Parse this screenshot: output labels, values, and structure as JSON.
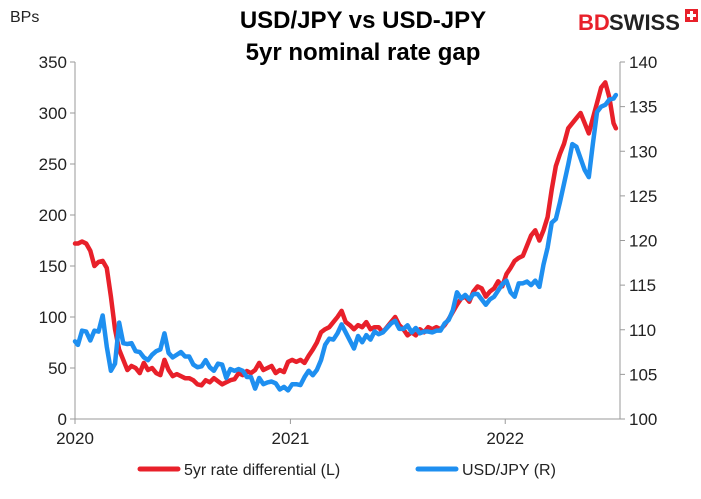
{
  "chart_data": {
    "type": "line",
    "title_line1": "USD/JPY vs USD-JPY",
    "title_line2": "5yr nominal rate gap",
    "ylabel_left": "BPs",
    "ylim_left": [
      0,
      350
    ],
    "yticks_left": [
      "0",
      "50",
      "100",
      "150",
      "200",
      "250",
      "300",
      "350"
    ],
    "ylim_right": [
      100,
      140
    ],
    "yticks_right": [
      "100",
      "105",
      "110",
      "115",
      "120",
      "125",
      "130",
      "135",
      "140"
    ],
    "xlim": [
      "2020-01-01",
      "2022-07-15"
    ],
    "xticks": [
      "2020",
      "2021",
      "2022"
    ],
    "grid": false,
    "legend_position": "bottom",
    "series": [
      {
        "name": "5yr rate differential (L)",
        "axis": "left",
        "color": "#e8202a",
        "points": [
          [
            "2020-01-01",
            172
          ],
          [
            "2020-01-06",
            172
          ],
          [
            "2020-01-13",
            174
          ],
          [
            "2020-01-20",
            172
          ],
          [
            "2020-01-27",
            165
          ],
          [
            "2020-02-03",
            150
          ],
          [
            "2020-02-10",
            154
          ],
          [
            "2020-02-17",
            155
          ],
          [
            "2020-02-24",
            148
          ],
          [
            "2020-03-02",
            120
          ],
          [
            "2020-03-09",
            88
          ],
          [
            "2020-03-16",
            68
          ],
          [
            "2020-03-23",
            58
          ],
          [
            "2020-03-30",
            48
          ],
          [
            "2020-04-06",
            52
          ],
          [
            "2020-04-13",
            50
          ],
          [
            "2020-04-20",
            45
          ],
          [
            "2020-04-27",
            55
          ],
          [
            "2020-05-04",
            48
          ],
          [
            "2020-05-11",
            50
          ],
          [
            "2020-05-18",
            45
          ],
          [
            "2020-05-25",
            43
          ],
          [
            "2020-06-01",
            58
          ],
          [
            "2020-06-08",
            48
          ],
          [
            "2020-06-15",
            42
          ],
          [
            "2020-06-22",
            44
          ],
          [
            "2020-06-29",
            42
          ],
          [
            "2020-07-06",
            40
          ],
          [
            "2020-07-13",
            40
          ],
          [
            "2020-07-20",
            38
          ],
          [
            "2020-07-27",
            34
          ],
          [
            "2020-08-03",
            33
          ],
          [
            "2020-08-10",
            38
          ],
          [
            "2020-08-17",
            36
          ],
          [
            "2020-08-24",
            40
          ],
          [
            "2020-08-31",
            37
          ],
          [
            "2020-09-07",
            34
          ],
          [
            "2020-09-14",
            36
          ],
          [
            "2020-09-21",
            38
          ],
          [
            "2020-09-28",
            39
          ],
          [
            "2020-10-05",
            45
          ],
          [
            "2020-10-12",
            43
          ],
          [
            "2020-10-19",
            47
          ],
          [
            "2020-10-26",
            45
          ],
          [
            "2020-11-02",
            48
          ],
          [
            "2020-11-09",
            55
          ],
          [
            "2020-11-16",
            48
          ],
          [
            "2020-11-23",
            50
          ],
          [
            "2020-11-30",
            52
          ],
          [
            "2020-12-07",
            45
          ],
          [
            "2020-12-14",
            48
          ],
          [
            "2020-12-21",
            46
          ],
          [
            "2020-12-28",
            56
          ],
          [
            "2021-01-04",
            58
          ],
          [
            "2021-01-11",
            56
          ],
          [
            "2021-01-18",
            58
          ],
          [
            "2021-01-25",
            55
          ],
          [
            "2021-02-01",
            62
          ],
          [
            "2021-02-08",
            68
          ],
          [
            "2021-02-15",
            75
          ],
          [
            "2021-02-22",
            85
          ],
          [
            "2021-03-01",
            88
          ],
          [
            "2021-03-08",
            90
          ],
          [
            "2021-03-15",
            95
          ],
          [
            "2021-03-22",
            100
          ],
          [
            "2021-03-29",
            106
          ],
          [
            "2021-04-05",
            95
          ],
          [
            "2021-04-12",
            92
          ],
          [
            "2021-04-19",
            88
          ],
          [
            "2021-04-26",
            92
          ],
          [
            "2021-05-03",
            90
          ],
          [
            "2021-05-10",
            95
          ],
          [
            "2021-05-17",
            88
          ],
          [
            "2021-05-24",
            90
          ],
          [
            "2021-05-31",
            90
          ],
          [
            "2021-06-07",
            85
          ],
          [
            "2021-06-14",
            90
          ],
          [
            "2021-06-21",
            95
          ],
          [
            "2021-06-28",
            100
          ],
          [
            "2021-07-05",
            92
          ],
          [
            "2021-07-12",
            88
          ],
          [
            "2021-07-19",
            82
          ],
          [
            "2021-07-26",
            85
          ],
          [
            "2021-08-02",
            82
          ],
          [
            "2021-08-09",
            88
          ],
          [
            "2021-08-16",
            85
          ],
          [
            "2021-08-23",
            90
          ],
          [
            "2021-08-30",
            88
          ],
          [
            "2021-09-06",
            90
          ],
          [
            "2021-09-13",
            88
          ],
          [
            "2021-09-20",
            92
          ],
          [
            "2021-09-27",
            98
          ],
          [
            "2021-10-04",
            105
          ],
          [
            "2021-10-11",
            112
          ],
          [
            "2021-10-18",
            118
          ],
          [
            "2021-10-25",
            120
          ],
          [
            "2021-11-01",
            115
          ],
          [
            "2021-11-08",
            125
          ],
          [
            "2021-11-15",
            130
          ],
          [
            "2021-11-22",
            128
          ],
          [
            "2021-11-29",
            120
          ],
          [
            "2021-12-06",
            125
          ],
          [
            "2021-12-13",
            128
          ],
          [
            "2021-12-20",
            135
          ],
          [
            "2021-12-27",
            130
          ],
          [
            "2022-01-03",
            142
          ],
          [
            "2022-01-10",
            148
          ],
          [
            "2022-01-17",
            155
          ],
          [
            "2022-01-24",
            158
          ],
          [
            "2022-01-31",
            160
          ],
          [
            "2022-02-07",
            170
          ],
          [
            "2022-02-14",
            180
          ],
          [
            "2022-02-21",
            185
          ],
          [
            "2022-02-28",
            175
          ],
          [
            "2022-03-07",
            185
          ],
          [
            "2022-03-14",
            198
          ],
          [
            "2022-03-21",
            225
          ],
          [
            "2022-03-28",
            248
          ],
          [
            "2022-04-04",
            260
          ],
          [
            "2022-04-11",
            270
          ],
          [
            "2022-04-18",
            285
          ],
          [
            "2022-04-25",
            290
          ],
          [
            "2022-05-02",
            295
          ],
          [
            "2022-05-09",
            300
          ],
          [
            "2022-05-16",
            290
          ],
          [
            "2022-05-23",
            280
          ],
          [
            "2022-05-30",
            295
          ],
          [
            "2022-06-06",
            310
          ],
          [
            "2022-06-13",
            325
          ],
          [
            "2022-06-20",
            330
          ],
          [
            "2022-06-27",
            315
          ],
          [
            "2022-07-04",
            290
          ],
          [
            "2022-07-08",
            285
          ]
        ]
      },
      {
        "name": "USD/JPY (R)",
        "axis": "right",
        "color": "#1e8ff0",
        "points": [
          [
            "2020-01-01",
            108.7
          ],
          [
            "2020-01-06",
            108.3
          ],
          [
            "2020-01-13",
            109.9
          ],
          [
            "2020-01-20",
            109.8
          ],
          [
            "2020-01-27",
            108.8
          ],
          [
            "2020-02-03",
            109.9
          ],
          [
            "2020-02-10",
            109.8
          ],
          [
            "2020-02-17",
            111.6
          ],
          [
            "2020-02-24",
            108.1
          ],
          [
            "2020-03-02",
            105.4
          ],
          [
            "2020-03-09",
            106.2
          ],
          [
            "2020-03-16",
            110.8
          ],
          [
            "2020-03-23",
            108.5
          ],
          [
            "2020-03-30",
            108.4
          ],
          [
            "2020-04-06",
            108.5
          ],
          [
            "2020-04-13",
            107.6
          ],
          [
            "2020-04-20",
            107.5
          ],
          [
            "2020-04-27",
            106.9
          ],
          [
            "2020-05-04",
            106.6
          ],
          [
            "2020-05-11",
            107.2
          ],
          [
            "2020-05-18",
            107.6
          ],
          [
            "2020-05-25",
            107.8
          ],
          [
            "2020-06-01",
            109.6
          ],
          [
            "2020-06-08",
            107.4
          ],
          [
            "2020-06-15",
            106.9
          ],
          [
            "2020-06-22",
            107.2
          ],
          [
            "2020-06-29",
            107.5
          ],
          [
            "2020-07-06",
            107.0
          ],
          [
            "2020-07-13",
            107.0
          ],
          [
            "2020-07-20",
            106.1
          ],
          [
            "2020-07-27",
            105.8
          ],
          [
            "2020-08-03",
            105.9
          ],
          [
            "2020-08-10",
            106.6
          ],
          [
            "2020-08-17",
            105.8
          ],
          [
            "2020-08-24",
            105.4
          ],
          [
            "2020-08-31",
            106.2
          ],
          [
            "2020-09-07",
            106.1
          ],
          [
            "2020-09-14",
            104.6
          ],
          [
            "2020-09-21",
            105.6
          ],
          [
            "2020-09-28",
            105.4
          ],
          [
            "2020-10-05",
            105.6
          ],
          [
            "2020-10-12",
            105.4
          ],
          [
            "2020-10-19",
            104.7
          ],
          [
            "2020-10-26",
            104.7
          ],
          [
            "2020-11-02",
            103.4
          ],
          [
            "2020-11-09",
            104.6
          ],
          [
            "2020-11-16",
            103.9
          ],
          [
            "2020-11-23",
            104.1
          ],
          [
            "2020-11-30",
            104.2
          ],
          [
            "2020-12-07",
            104.0
          ],
          [
            "2020-12-14",
            103.3
          ],
          [
            "2020-12-21",
            103.6
          ],
          [
            "2020-12-28",
            103.2
          ],
          [
            "2021-01-04",
            103.9
          ],
          [
            "2021-01-11",
            103.9
          ],
          [
            "2021-01-18",
            103.8
          ],
          [
            "2021-01-25",
            104.7
          ],
          [
            "2021-02-01",
            105.4
          ],
          [
            "2021-02-08",
            104.9
          ],
          [
            "2021-02-15",
            105.5
          ],
          [
            "2021-02-22",
            106.6
          ],
          [
            "2021-03-01",
            108.3
          ],
          [
            "2021-03-08",
            109.0
          ],
          [
            "2021-03-15",
            108.9
          ],
          [
            "2021-03-22",
            109.6
          ],
          [
            "2021-03-29",
            110.6
          ],
          [
            "2021-04-05",
            109.7
          ],
          [
            "2021-04-12",
            108.8
          ],
          [
            "2021-04-19",
            107.9
          ],
          [
            "2021-04-26",
            109.3
          ],
          [
            "2021-05-03",
            108.6
          ],
          [
            "2021-05-10",
            109.4
          ],
          [
            "2021-05-17",
            108.9
          ],
          [
            "2021-05-24",
            109.8
          ],
          [
            "2021-05-31",
            109.5
          ],
          [
            "2021-06-07",
            109.7
          ],
          [
            "2021-06-14",
            110.2
          ],
          [
            "2021-06-21",
            110.7
          ],
          [
            "2021-06-28",
            111.0
          ],
          [
            "2021-07-05",
            110.1
          ],
          [
            "2021-07-12",
            110.1
          ],
          [
            "2021-07-19",
            110.5
          ],
          [
            "2021-07-26",
            109.7
          ],
          [
            "2021-08-02",
            110.2
          ],
          [
            "2021-08-09",
            109.6
          ],
          [
            "2021-08-16",
            109.8
          ],
          [
            "2021-08-23",
            109.8
          ],
          [
            "2021-08-30",
            109.7
          ],
          [
            "2021-09-06",
            109.9
          ],
          [
            "2021-09-13",
            109.9
          ],
          [
            "2021-09-20",
            110.7
          ],
          [
            "2021-09-27",
            111.1
          ],
          [
            "2021-10-04",
            112.2
          ],
          [
            "2021-10-11",
            114.2
          ],
          [
            "2021-10-18",
            113.5
          ],
          [
            "2021-10-25",
            113.9
          ],
          [
            "2021-11-01",
            113.4
          ],
          [
            "2021-11-08",
            114.0
          ],
          [
            "2021-11-15",
            114.0
          ],
          [
            "2021-11-22",
            113.4
          ],
          [
            "2021-11-29",
            112.8
          ],
          [
            "2021-12-06",
            113.4
          ],
          [
            "2021-12-13",
            113.7
          ],
          [
            "2021-12-20",
            114.4
          ],
          [
            "2021-12-27",
            115.1
          ],
          [
            "2022-01-03",
            115.5
          ],
          [
            "2022-01-10",
            114.2
          ],
          [
            "2022-01-17",
            113.7
          ],
          [
            "2022-01-24",
            115.2
          ],
          [
            "2022-01-31",
            115.2
          ],
          [
            "2022-02-07",
            115.4
          ],
          [
            "2022-02-14",
            115.0
          ],
          [
            "2022-02-21",
            115.5
          ],
          [
            "2022-02-28",
            114.8
          ],
          [
            "2022-03-07",
            117.3
          ],
          [
            "2022-03-14",
            119.2
          ],
          [
            "2022-03-21",
            122.0
          ],
          [
            "2022-03-28",
            122.4
          ],
          [
            "2022-04-04",
            124.3
          ],
          [
            "2022-04-11",
            126.4
          ],
          [
            "2022-04-18",
            128.5
          ],
          [
            "2022-04-25",
            130.8
          ],
          [
            "2022-05-02",
            130.5
          ],
          [
            "2022-05-09",
            129.2
          ],
          [
            "2022-05-16",
            127.9
          ],
          [
            "2022-05-23",
            127.1
          ],
          [
            "2022-05-30",
            130.9
          ],
          [
            "2022-06-06",
            134.4
          ],
          [
            "2022-06-13",
            135.0
          ],
          [
            "2022-06-20",
            135.2
          ],
          [
            "2022-06-27",
            135.8
          ],
          [
            "2022-07-04",
            135.9
          ],
          [
            "2022-07-08",
            136.3
          ]
        ]
      }
    ]
  },
  "logo": {
    "text_bd": "BD",
    "text_swiss": "SWISS",
    "red": "#e8202a",
    "dark": "#222222"
  }
}
